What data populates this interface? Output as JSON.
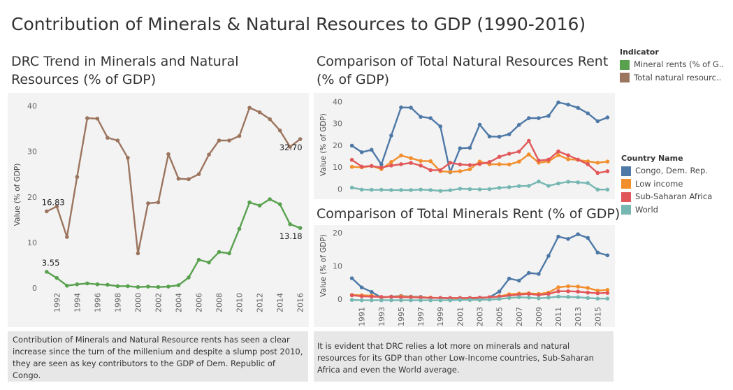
{
  "title": "Contribution of Minerals & Natural Resources to GDP (1990-2016)",
  "left_panel": {
    "title": "DRC Trend in Minerals and Natural Resources (% of GDP)",
    "caption": "Contribution of Minerals and Natural Resource rents has seen a clear increase since the turn of the millenium and despite a slump post 2010, they are seen as key contributors to the GDP of Dem. Republic of Congo."
  },
  "right_top_panel": {
    "title": "Comparison of Total Natural Resources Rent (% of GDP)"
  },
  "right_bottom_panel": {
    "title": "Comparison of Total Minerals  Rent (% of GDP)",
    "caption": "It is evident that DRC relies a lot more on minerals and natural resources for its GDP than other Low-Income countries, Sub-Saharan Africa and even the World average."
  },
  "indicator_legend": {
    "title": "Indicator",
    "items": [
      {
        "label": "Mineral rents (% of G..",
        "color": "#59a14f"
      },
      {
        "label": "Total natural resourc..",
        "color": "#9c755f"
      }
    ]
  },
  "country_legend": {
    "title": "Country Name",
    "items": [
      {
        "label": "Congo, Dem. Rep.",
        "color": "#4e79a7"
      },
      {
        "label": "Low income",
        "color": "#f28e2b"
      },
      {
        "label": "Sub-Saharan Africa",
        "color": "#e15759"
      },
      {
        "label": "World",
        "color": "#76b7b2"
      }
    ]
  },
  "chart_data": [
    {
      "type": "line",
      "title": "DRC Trend in Minerals and Natural Resources (% of GDP)",
      "xlabel": "",
      "ylabel": "Value (% of GDP)",
      "x": [
        1991,
        1992,
        1993,
        1994,
        1995,
        1996,
        1997,
        1998,
        1999,
        2000,
        2001,
        2002,
        2003,
        2004,
        2005,
        2006,
        2007,
        2008,
        2009,
        2010,
        2011,
        2012,
        2013,
        2014,
        2015,
        2016
      ],
      "xlim": [
        1990.6,
        2016.3
      ],
      "ylim": [
        0,
        41
      ],
      "yticks": [
        0,
        10,
        20,
        30,
        40
      ],
      "xticks": [
        1992,
        1994,
        1996,
        1998,
        2000,
        2002,
        2004,
        2006,
        2008,
        2010,
        2012,
        2014,
        2016
      ],
      "grid": false,
      "series": [
        {
          "name": "Total natural resourc..",
          "color": "#9c755f",
          "values": [
            16.83,
            17.9,
            11.2,
            24.4,
            37.3,
            37.2,
            33.0,
            32.4,
            28.6,
            7.6,
            18.6,
            18.8,
            29.4,
            24.0,
            23.9,
            25.0,
            29.3,
            32.4,
            32.4,
            33.4,
            39.6,
            38.6,
            37.1,
            34.6,
            31.0,
            32.7
          ],
          "labels": {
            "0": "16.83",
            "25": "32.70"
          }
        },
        {
          "name": "Mineral rents (% of G..",
          "color": "#59a14f",
          "values": [
            3.55,
            2.2,
            0.5,
            0.8,
            1.0,
            0.8,
            0.7,
            0.4,
            0.4,
            0.2,
            0.3,
            0.2,
            0.3,
            0.6,
            2.3,
            6.2,
            5.6,
            7.9,
            7.6,
            13.0,
            18.8,
            18.1,
            19.5,
            18.4,
            14.0,
            13.18
          ],
          "labels": {
            "0": "3.55",
            "25": "13.18"
          }
        }
      ]
    },
    {
      "type": "line",
      "title": "Comparison of Total Natural Resources Rent (% of GDP)",
      "ylabel": "Value (% of GDP)",
      "x": [
        1990,
        1991,
        1992,
        1993,
        1994,
        1995,
        1996,
        1997,
        1998,
        1999,
        2000,
        2001,
        2002,
        2003,
        2004,
        2005,
        2006,
        2007,
        2008,
        2009,
        2010,
        2011,
        2012,
        2013,
        2014,
        2015,
        2016
      ],
      "xlim": [
        1989.6,
        2016.4
      ],
      "ylim": [
        -1.5,
        42
      ],
      "yticks": [
        0,
        10,
        20,
        30,
        40
      ],
      "grid": false,
      "series": [
        {
          "name": "Congo, Dem. Rep.",
          "color": "#4e79a7",
          "values": [
            19.8,
            16.8,
            17.9,
            11.2,
            24.4,
            37.3,
            37.2,
            33.0,
            32.4,
            28.6,
            7.6,
            18.6,
            18.8,
            29.4,
            24.0,
            23.9,
            25.0,
            29.3,
            32.4,
            32.4,
            33.4,
            39.6,
            38.6,
            37.1,
            34.6,
            31.0,
            32.7
          ]
        },
        {
          "name": "Low income",
          "color": "#f28e2b",
          "values": [
            10.1,
            9.9,
            10.5,
            9.1,
            12.3,
            15.3,
            14.1,
            12.8,
            12.7,
            8.1,
            7.8,
            8.1,
            9.0,
            12.5,
            11.3,
            11.3,
            11.2,
            12.5,
            15.8,
            12.0,
            12.6,
            15.5,
            13.6,
            13.3,
            12.6,
            12.0,
            12.5
          ]
        },
        {
          "name": "Sub-Saharan Africa",
          "color": "#e15759",
          "values": [
            13.3,
            10.2,
            10.5,
            9.8,
            10.7,
            11.3,
            11.9,
            10.7,
            8.6,
            8.6,
            12.0,
            11.2,
            10.9,
            11.4,
            12.3,
            14.7,
            16.1,
            17.1,
            22.0,
            13.0,
            13.4,
            17.2,
            15.4,
            13.4,
            11.3,
            7.3,
            8.1
          ]
        },
        {
          "name": "World",
          "color": "#76b7b2",
          "values": [
            0.6,
            -0.3,
            -0.4,
            -0.4,
            -0.5,
            -0.5,
            -0.5,
            -0.3,
            -0.5,
            -0.9,
            -0.6,
            0.1,
            -0.1,
            -0.2,
            -0.1,
            0.5,
            0.8,
            1.3,
            1.4,
            3.4,
            1.4,
            2.5,
            3.3,
            3.0,
            2.7,
            -0.3,
            -0.3
          ]
        }
      ]
    },
    {
      "type": "line",
      "title": "Comparison of Total Minerals  Rent (% of GDP)",
      "ylabel": "Value (% of GDP)",
      "x": [
        1990,
        1991,
        1992,
        1993,
        1994,
        1995,
        1996,
        1997,
        1998,
        1999,
        2000,
        2001,
        2002,
        2003,
        2004,
        2005,
        2006,
        2007,
        2008,
        2009,
        2010,
        2011,
        2012,
        2013,
        2014,
        2015,
        2016
      ],
      "xlim": [
        1989.6,
        2016.4
      ],
      "ylim": [
        -0.8,
        21
      ],
      "yticks": [
        0,
        10,
        20
      ],
      "xticks": [
        1991,
        1993,
        1995,
        1997,
        1999,
        2001,
        2003,
        2005,
        2007,
        2009,
        2011,
        2013,
        2015
      ],
      "grid": false,
      "series": [
        {
          "name": "Congo, Dem. Rep.",
          "color": "#4e79a7",
          "values": [
            6.3,
            3.55,
            2.2,
            0.5,
            0.8,
            1.0,
            0.8,
            0.7,
            0.4,
            0.4,
            0.2,
            0.3,
            0.2,
            0.3,
            0.6,
            2.3,
            6.2,
            5.6,
            7.9,
            7.6,
            13.0,
            18.8,
            18.1,
            19.5,
            18.4,
            14.0,
            13.18
          ]
        },
        {
          "name": "Low income",
          "color": "#f28e2b",
          "values": [
            1.3,
            1.2,
            1.1,
            0.6,
            0.7,
            0.9,
            0.7,
            0.6,
            0.5,
            0.4,
            0.3,
            0.3,
            0.3,
            0.4,
            0.6,
            0.9,
            1.5,
            1.7,
            1.8,
            1.6,
            2.0,
            3.6,
            3.9,
            3.8,
            3.4,
            2.6,
            2.8
          ]
        },
        {
          "name": "Sub-Saharan Africa",
          "color": "#e15759",
          "values": [
            1.2,
            0.9,
            0.8,
            0.7,
            0.7,
            0.6,
            0.6,
            0.5,
            0.4,
            0.4,
            0.4,
            0.4,
            0.4,
            0.5,
            0.6,
            0.8,
            1.1,
            1.4,
            1.6,
            1.3,
            1.6,
            2.4,
            2.4,
            2.3,
            2.0,
            1.8,
            1.9
          ]
        },
        {
          "name": "World",
          "color": "#76b7b2",
          "values": [
            -0.2,
            -0.3,
            -0.3,
            -0.3,
            -0.3,
            -0.3,
            -0.3,
            -0.3,
            -0.3,
            -0.3,
            -0.3,
            -0.2,
            -0.2,
            -0.2,
            -0.1,
            0.1,
            0.4,
            0.6,
            0.5,
            0.3,
            0.5,
            0.8,
            0.7,
            0.6,
            0.4,
            0.2,
            0.2
          ]
        }
      ]
    }
  ]
}
